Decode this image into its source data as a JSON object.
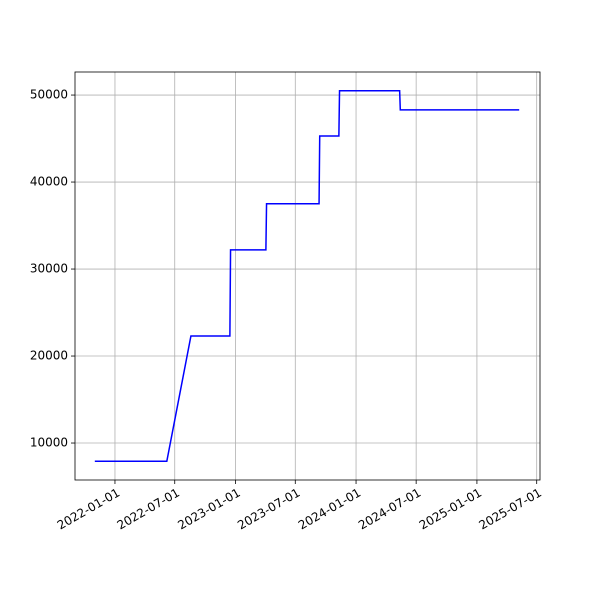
{
  "chart_data": {
    "type": "line",
    "x": [
      "2021-11-01",
      "2022-06-07",
      "2022-08-19",
      "2022-12-15",
      "2022-12-17",
      "2023-04-03",
      "2023-04-05",
      "2023-09-11",
      "2023-09-13",
      "2023-11-10",
      "2023-11-12",
      "2024-05-12",
      "2024-05-14",
      "2025-05-09"
    ],
    "series": [
      {
        "color": "#0000ff",
        "values": [
          7900,
          7900,
          22300,
          22300,
          32200,
          32200,
          37500,
          37500,
          45300,
          45300,
          50500,
          50500,
          48300,
          48300
        ]
      }
    ],
    "xlim": [
      "2021-09-02",
      "2025-07-11"
    ],
    "xticks": [
      "2022-01-01",
      "2022-07-01",
      "2023-01-01",
      "2023-07-01",
      "2024-01-01",
      "2024-07-01",
      "2025-01-01",
      "2025-07-01"
    ],
    "ylim": [
      5750,
      52650
    ],
    "yticks": [
      10000,
      20000,
      30000,
      40000,
      50000
    ],
    "grid": true
  }
}
